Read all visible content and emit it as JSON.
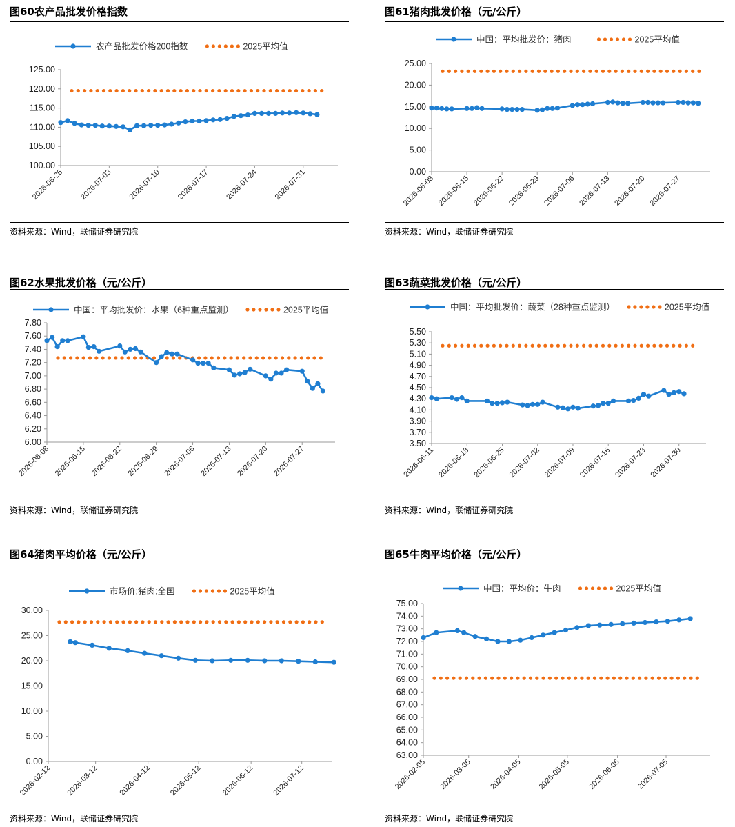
{
  "colors": {
    "series": "#1f7ed1",
    "average": "#f06e14"
  },
  "panels": [
    {
      "figure_label": "图60",
      "title": "农产品批发价格指数",
      "source": "资料来源：Wind，联储证券研究院",
      "chart_data": {
        "type": "line",
        "ylim": [
          100,
          125
        ],
        "ytick_step": 5,
        "ytick_decimals": 2,
        "xlim": [
          "2026-06-26",
          "2026-08-04"
        ],
        "xticks": [
          "2026-06-26",
          "2026-07-03",
          "2026-07-10",
          "2026-07-17",
          "2026-07-24",
          "2026-07-31"
        ],
        "series": [
          {
            "name": "农产品批发价格200指数",
            "x": [
              "2026-06-26",
              "2026-06-27",
              "2026-06-28",
              "2026-06-29",
              "2026-06-30",
              "2026-07-01",
              "2026-07-02",
              "2026-07-03",
              "2026-07-04",
              "2026-07-05",
              "2026-07-06",
              "2026-07-07",
              "2026-07-08",
              "2026-07-09",
              "2026-07-10",
              "2026-07-11",
              "2026-07-12",
              "2026-07-13",
              "2026-07-14",
              "2026-07-15",
              "2026-07-16",
              "2026-07-17",
              "2026-07-18",
              "2026-07-19",
              "2026-07-20",
              "2026-07-21",
              "2026-07-22",
              "2026-07-23",
              "2026-07-24",
              "2026-07-25",
              "2026-07-26",
              "2026-07-27",
              "2026-07-28",
              "2026-07-29",
              "2026-07-30",
              "2026-07-31",
              "2026-08-01",
              "2026-08-02"
            ],
            "y": [
              111.2,
              111.7,
              111.0,
              110.6,
              110.5,
              110.5,
              110.3,
              110.3,
              110.2,
              110.1,
              109.3,
              110.4,
              110.4,
              110.5,
              110.5,
              110.6,
              110.8,
              111.1,
              111.4,
              111.6,
              111.6,
              111.7,
              111.9,
              112.0,
              112.3,
              112.8,
              113.0,
              113.2,
              113.6,
              113.6,
              113.6,
              113.6,
              113.7,
              113.7,
              113.8,
              113.7,
              113.5,
              113.3
            ]
          },
          {
            "name": "2025平均值",
            "value": 119.5
          }
        ]
      }
    },
    {
      "figure_label": "图61",
      "title": "猪肉批发价格（元/公斤）",
      "source": "资料来源：Wind，联储证券研究院",
      "chart_data": {
        "type": "line",
        "ylim": [
          0,
          25
        ],
        "ytick_step": 5,
        "ytick_decimals": 2,
        "xlim": [
          "2026-06-08",
          "2026-08-01"
        ],
        "xticks": [
          "2026-06-08",
          "2026-06-15",
          "2026-06-22",
          "2026-06-29",
          "2026-07-06",
          "2026-07-13",
          "2026-07-20",
          "2026-07-27"
        ],
        "series": [
          {
            "name": "中国：平均批发价：猪肉",
            "x": [
              "2026-06-08",
              "2026-06-09",
              "2026-06-10",
              "2026-06-11",
              "2026-06-12",
              "2026-06-15",
              "2026-06-16",
              "2026-06-17",
              "2026-06-18",
              "2026-06-22",
              "2026-06-23",
              "2026-06-24",
              "2026-06-25",
              "2026-06-26",
              "2026-06-29",
              "2026-06-30",
              "2026-07-01",
              "2026-07-02",
              "2026-07-03",
              "2026-07-06",
              "2026-07-07",
              "2026-07-08",
              "2026-07-09",
              "2026-07-10",
              "2026-07-13",
              "2026-07-14",
              "2026-07-15",
              "2026-07-16",
              "2026-07-17",
              "2026-07-20",
              "2026-07-21",
              "2026-07-22",
              "2026-07-23",
              "2026-07-24",
              "2026-07-27",
              "2026-07-28",
              "2026-07-29",
              "2026-07-30",
              "2026-07-31"
            ],
            "y": [
              14.7,
              14.7,
              14.6,
              14.5,
              14.5,
              14.6,
              14.6,
              14.8,
              14.6,
              14.5,
              14.4,
              14.4,
              14.4,
              14.4,
              14.2,
              14.3,
              14.6,
              14.6,
              14.7,
              15.3,
              15.5,
              15.5,
              15.6,
              15.7,
              16.0,
              16.1,
              15.9,
              15.8,
              15.8,
              16.0,
              16.0,
              15.9,
              15.9,
              15.9,
              16.0,
              16.0,
              15.9,
              15.9,
              15.8
            ]
          },
          {
            "name": "2025平均值",
            "value": 23.2
          }
        ]
      }
    },
    {
      "figure_label": "图62",
      "title": "水果批发价格（元/公斤）",
      "source": "资料来源：Wind，联储证券研究院",
      "chart_data": {
        "type": "line",
        "ylim": [
          6.0,
          7.8
        ],
        "ytick_step": 0.2,
        "ytick_decimals": 2,
        "xlim": [
          "2026-06-08",
          "2026-08-01"
        ],
        "xticks": [
          "2026-06-08",
          "2026-06-15",
          "2026-06-22",
          "2026-06-29",
          "2026-07-06",
          "2026-07-13",
          "2026-07-20",
          "2026-07-27"
        ],
        "series": [
          {
            "name": "中国：平均批发价：水果（6种重点监测）",
            "x": [
              "2026-06-08",
              "2026-06-09",
              "2026-06-10",
              "2026-06-11",
              "2026-06-12",
              "2026-06-15",
              "2026-06-16",
              "2026-06-17",
              "2026-06-18",
              "2026-06-22",
              "2026-06-23",
              "2026-06-24",
              "2026-06-25",
              "2026-06-26",
              "2026-06-29",
              "2026-06-30",
              "2026-07-01",
              "2026-07-02",
              "2026-07-03",
              "2026-07-06",
              "2026-07-07",
              "2026-07-08",
              "2026-07-09",
              "2026-07-10",
              "2026-07-13",
              "2026-07-14",
              "2026-07-15",
              "2026-07-16",
              "2026-07-17",
              "2026-07-20",
              "2026-07-21",
              "2026-07-22",
              "2026-07-23",
              "2026-07-24",
              "2026-07-27",
              "2026-07-28",
              "2026-07-29",
              "2026-07-30",
              "2026-07-31"
            ],
            "y": [
              7.53,
              7.58,
              7.44,
              7.53,
              7.53,
              7.59,
              7.43,
              7.44,
              7.37,
              7.45,
              7.36,
              7.4,
              7.41,
              7.36,
              7.2,
              7.29,
              7.35,
              7.33,
              7.33,
              7.24,
              7.19,
              7.19,
              7.19,
              7.12,
              7.09,
              7.01,
              7.03,
              7.05,
              7.1,
              7.0,
              6.95,
              7.04,
              7.04,
              7.09,
              7.07,
              6.92,
              6.81,
              6.88,
              6.77
            ]
          },
          {
            "name": "2025平均值",
            "value": 7.27
          }
        ]
      }
    },
    {
      "figure_label": "图63",
      "title": "蔬菜批发价格（元/公斤）",
      "source": "资料来源：Wind，联储证券研究院",
      "chart_data": {
        "type": "line",
        "ylim": [
          3.5,
          5.5
        ],
        "ytick_step": 0.2,
        "ytick_labels": [
          "3.50",
          "3.70",
          "3.90",
          "4.10",
          "4.30",
          "4.50",
          "4.70",
          "4.90",
          "5.10",
          "5.30",
          "5.50"
        ],
        "xlim": [
          "2026-06-11",
          "2026-08-03"
        ],
        "xticks": [
          "2026-06-11",
          "2026-06-18",
          "2026-06-25",
          "2026-07-02",
          "2026-07-09",
          "2026-07-16",
          "2026-07-23",
          "2026-07-30"
        ],
        "series": [
          {
            "name": "中国：平均批发价：蔬菜（28种重点监测）",
            "x": [
              "2026-06-11",
              "2026-06-12",
              "2026-06-15",
              "2026-06-16",
              "2026-06-17",
              "2026-06-18",
              "2026-06-22",
              "2026-06-23",
              "2026-06-24",
              "2026-06-25",
              "2026-06-26",
              "2026-06-29",
              "2026-06-30",
              "2026-07-01",
              "2026-07-02",
              "2026-07-03",
              "2026-07-06",
              "2026-07-07",
              "2026-07-08",
              "2026-07-09",
              "2026-07-10",
              "2026-07-13",
              "2026-07-14",
              "2026-07-15",
              "2026-07-16",
              "2026-07-17",
              "2026-07-20",
              "2026-07-21",
              "2026-07-22",
              "2026-07-23",
              "2026-07-24",
              "2026-07-27",
              "2026-07-28",
              "2026-07-29",
              "2026-07-30",
              "2026-07-31"
            ],
            "y": [
              4.32,
              4.3,
              4.32,
              4.29,
              4.32,
              4.26,
              4.26,
              4.22,
              4.22,
              4.23,
              4.24,
              4.19,
              4.18,
              4.2,
              4.2,
              4.24,
              4.15,
              4.14,
              4.12,
              4.15,
              4.13,
              4.17,
              4.18,
              4.22,
              4.22,
              4.26,
              4.26,
              4.27,
              4.31,
              4.38,
              4.35,
              4.45,
              4.38,
              4.41,
              4.43,
              4.39
            ]
          },
          {
            "name": "2025平均值",
            "value": 5.25
          }
        ]
      }
    },
    {
      "figure_label": "图64",
      "title": "猪肉平均价格（元/公斤）",
      "source": "资料来源：Wind，联储证券研究院",
      "chart_data": {
        "type": "line",
        "ylim": [
          0,
          30
        ],
        "ytick_step": 5,
        "ytick_decimals": 2,
        "xlim": [
          "2026-02-12",
          "2026-07-26"
        ],
        "xticks": [
          "2026-02-12",
          "2026-03-12",
          "2026-04-12",
          "2026-05-12",
          "2026-06-12",
          "2026-07-12"
        ],
        "series": [
          {
            "name": "市场价:猪肉:全国",
            "x": [
              "2026-02-25",
              "2026-02-28",
              "2026-03-10",
              "2026-03-20",
              "2026-03-31",
              "2026-04-10",
              "2026-04-20",
              "2026-04-30",
              "2026-05-10",
              "2026-05-20",
              "2026-05-31",
              "2026-06-10",
              "2026-06-20",
              "2026-06-30",
              "2026-07-10",
              "2026-07-20",
              "2026-07-31"
            ],
            "y": [
              23.8,
              23.6,
              23.1,
              22.5,
              22.0,
              21.5,
              21.0,
              20.5,
              20.1,
              20.0,
              20.1,
              20.1,
              20.0,
              20.0,
              19.9,
              19.8,
              19.7
            ]
          },
          {
            "name": "2025平均值",
            "value": 27.7
          }
        ]
      }
    },
    {
      "figure_label": "图65",
      "title": "牛肉平均价格（元/公斤）",
      "source": "资料来源：Wind，联储证券研究院",
      "chart_data": {
        "type": "line",
        "ylim": [
          63,
          75
        ],
        "ytick_step": 1,
        "ytick_decimals": 2,
        "xlim": [
          "2026-02-05",
          "2026-07-28"
        ],
        "xticks": [
          "2026-02-05",
          "2026-03-05",
          "2026-04-05",
          "2026-05-05",
          "2026-06-05",
          "2026-07-05"
        ],
        "series": [
          {
            "name": "中国：平均价：牛肉",
            "x": [
              "2026-02-05",
              "2026-02-13",
              "2026-02-26",
              "2026-03-02",
              "2026-03-09",
              "2026-03-16",
              "2026-03-23",
              "2026-03-30",
              "2026-04-06",
              "2026-04-13",
              "2026-04-20",
              "2026-04-27",
              "2026-05-04",
              "2026-05-11",
              "2026-05-18",
              "2026-05-25",
              "2026-06-01",
              "2026-06-08",
              "2026-06-15",
              "2026-06-22",
              "2026-06-29",
              "2026-07-06",
              "2026-07-13",
              "2026-07-20"
            ],
            "y": [
              72.3,
              72.7,
              72.85,
              72.7,
              72.4,
              72.2,
              72.0,
              72.0,
              72.1,
              72.3,
              72.5,
              72.7,
              72.9,
              73.1,
              73.25,
              73.3,
              73.35,
              73.4,
              73.45,
              73.5,
              73.55,
              73.6,
              73.7,
              73.8
            ]
          },
          {
            "name": "2025平均值",
            "value": 69.1
          }
        ]
      }
    }
  ]
}
